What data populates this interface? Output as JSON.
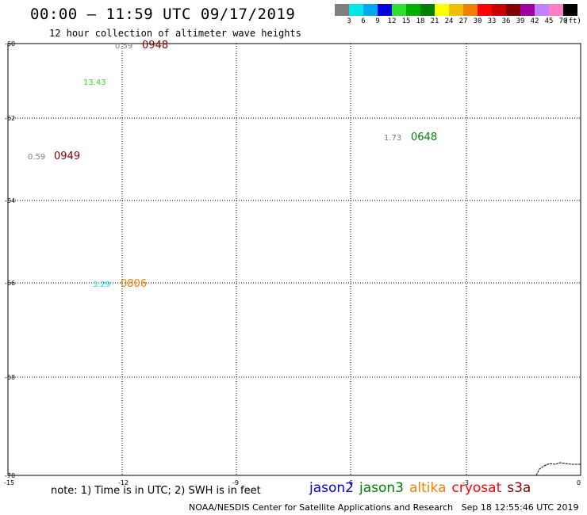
{
  "header": {
    "title": "00:00 – 11:59 UTC 09/17/2019",
    "subtitle": "12 hour collection of altimeter wave heights"
  },
  "colorbar": {
    "colors": [
      "#808080",
      "#00e5e5",
      "#00a8f0",
      "#0000e0",
      "#30e030",
      "#00b000",
      "#008000",
      "#ffff00",
      "#f0c000",
      "#f08000",
      "#ff0000",
      "#c80000",
      "#800000",
      "#a000a0",
      "#c080ff",
      "#ff80c0",
      "#000000"
    ],
    "labels": [
      "3",
      "6",
      "9",
      "12",
      "15",
      "18",
      "21",
      "24",
      "27",
      "30",
      "33",
      "36",
      "39",
      "42",
      "45",
      "70",
      "(ft)"
    ]
  },
  "axes": {
    "lat_labels": [
      "-60",
      "-62",
      "-64",
      "-66",
      "-68",
      "-70"
    ],
    "lon_labels": [
      "-15",
      "-12",
      "-9",
      "-6",
      "-3",
      "0"
    ]
  },
  "observations": [
    {
      "value": "0.59",
      "time": "0948",
      "value_color": "#808080",
      "time_color": "#800000"
    },
    {
      "value": "13.43",
      "time": "",
      "value_color": "#30e030",
      "time_color": ""
    },
    {
      "value": "1.73",
      "time": "0648",
      "value_color": "#808080",
      "time_color": "#008000"
    },
    {
      "value": "0.59",
      "time": "0949",
      "value_color": "#808080",
      "time_color": "#800000"
    },
    {
      "value": "3.29",
      "time": "0806",
      "value_color": "#00e5e5",
      "time_color": "#f08000"
    }
  ],
  "footer": {
    "note": "note: 1) Time is in UTC; 2) SWH is in feet",
    "legend": [
      {
        "label": "jason2",
        "color": "#0000e0"
      },
      {
        "label": "jason3",
        "color": "#008000"
      },
      {
        "label": "altika",
        "color": "#f08000"
      },
      {
        "label": "cryosat",
        "color": "#ff0000"
      },
      {
        "label": "s3a",
        "color": "#800000"
      }
    ],
    "credit": "NOAA/NESDIS Center for Satellite Applications and Research   Sep 18 12:55:46 UTC 2019"
  }
}
